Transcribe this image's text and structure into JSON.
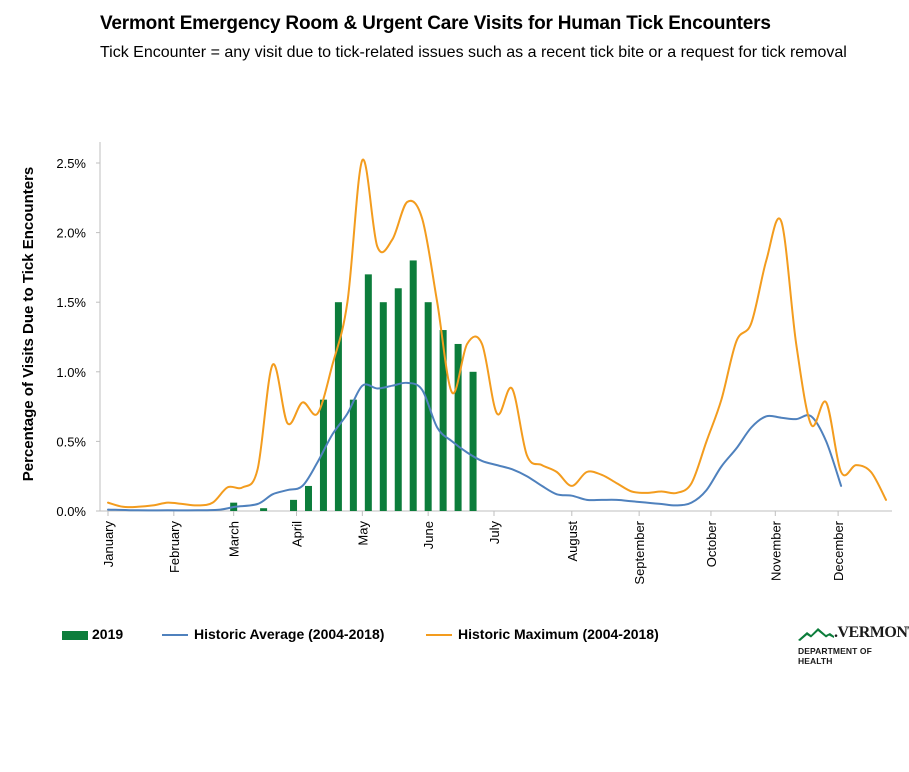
{
  "chart_data": {
    "type": "bar",
    "title": "Vermont Emergency Room & Urgent Care Visits for Human Tick Encounters",
    "subtitle": "Tick Encounter = any visit due to tick-related issues such as a recent tick bite or a request for tick removal",
    "ylabel": "Percentage of Visits Due to Tick Encounters",
    "xlabel": "",
    "ylim": [
      0,
      2.6
    ],
    "yticks": [
      0,
      0.5,
      1.0,
      1.5,
      2.0,
      2.5
    ],
    "ytick_labels": [
      "0.0%",
      "0.5%",
      "1.0%",
      "1.5%",
      "2.0%",
      "2.5%"
    ],
    "x_unit": "week of year",
    "xlim": [
      1,
      53
    ],
    "month_ticks": [
      {
        "label": "January",
        "week": 1
      },
      {
        "label": "February",
        "week": 5.4
      },
      {
        "label": "March",
        "week": 9.4
      },
      {
        "label": "April",
        "week": 13.6
      },
      {
        "label": "May",
        "week": 18
      },
      {
        "label": "June",
        "week": 22.4
      },
      {
        "label": "July",
        "week": 26.8
      },
      {
        "label": "August",
        "week": 32
      },
      {
        "label": "September",
        "week": 36.5
      },
      {
        "label": "October",
        "week": 41.3
      },
      {
        "label": "November",
        "week": 45.6
      },
      {
        "label": "December",
        "week": 49.8
      }
    ],
    "legend": [
      "2019",
      "Historic Average (2004-2018)",
      "Historic Maximum (2004-2018)"
    ],
    "series": [
      {
        "name": "2019",
        "kind": "bar",
        "color": "#0c7d3b",
        "x": [
          9.4,
          11.4,
          13.4,
          14.4,
          15.4,
          16.4,
          17.4,
          18.4,
          19.4,
          20.4,
          21.4,
          22.4,
          23.4,
          24.4,
          25.4
        ],
        "values": [
          0.06,
          0.02,
          0.08,
          0.18,
          0.8,
          1.5,
          0.8,
          1.7,
          1.5,
          1.6,
          1.8,
          1.5,
          1.3,
          1.2,
          1.0
        ]
      },
      {
        "name": "Historic Average (2004-2018)",
        "kind": "line",
        "color": "#4f81bd",
        "x": [
          1,
          3,
          5,
          7,
          8.5,
          9.5,
          11,
          12,
          13,
          14,
          15,
          16,
          17,
          18,
          19,
          20,
          21,
          22,
          23,
          24,
          25,
          26,
          27,
          28,
          29,
          30,
          31,
          32,
          33,
          34,
          35,
          36,
          37,
          38,
          39,
          40,
          41,
          42,
          43,
          44,
          45,
          46,
          47,
          48,
          49,
          50
        ],
        "values": [
          0.01,
          0.005,
          0.005,
          0.005,
          0.01,
          0.03,
          0.05,
          0.12,
          0.15,
          0.18,
          0.35,
          0.55,
          0.7,
          0.9,
          0.88,
          0.9,
          0.92,
          0.87,
          0.6,
          0.5,
          0.42,
          0.36,
          0.33,
          0.3,
          0.25,
          0.18,
          0.12,
          0.11,
          0.08,
          0.08,
          0.08,
          0.07,
          0.06,
          0.05,
          0.04,
          0.06,
          0.15,
          0.32,
          0.45,
          0.6,
          0.68,
          0.67,
          0.66,
          0.68,
          0.5,
          0.18
        ]
      },
      {
        "name": "Historic Maximum (2004-2018)",
        "kind": "line",
        "color": "#f39c1e",
        "x": [
          1,
          2,
          3,
          4,
          5,
          6,
          7,
          8,
          9,
          10,
          11,
          12,
          13,
          14,
          15,
          16,
          17,
          18,
          19,
          20,
          21,
          22,
          23,
          24,
          25,
          26,
          27,
          28,
          29,
          30,
          31,
          32,
          33,
          34,
          35,
          36,
          37,
          38,
          39,
          40,
          41,
          42,
          43,
          44,
          45,
          46,
          47,
          48,
          49,
          50,
          51,
          52,
          53
        ],
        "values": [
          0.06,
          0.03,
          0.03,
          0.04,
          0.06,
          0.05,
          0.04,
          0.06,
          0.17,
          0.17,
          0.3,
          1.05,
          0.63,
          0.78,
          0.7,
          1.05,
          1.5,
          2.52,
          1.9,
          1.95,
          2.22,
          2.1,
          1.5,
          0.85,
          1.2,
          1.2,
          0.7,
          0.88,
          0.4,
          0.33,
          0.28,
          0.18,
          0.28,
          0.26,
          0.2,
          0.14,
          0.13,
          0.14,
          0.13,
          0.2,
          0.5,
          0.8,
          1.22,
          1.35,
          1.8,
          2.08,
          1.2,
          0.62,
          0.78,
          0.28,
          0.33,
          0.28,
          0.08
        ]
      }
    ]
  },
  "logo": {
    "name": ".VERMONT",
    "department": "DEPARTMENT OF HEALTH"
  }
}
